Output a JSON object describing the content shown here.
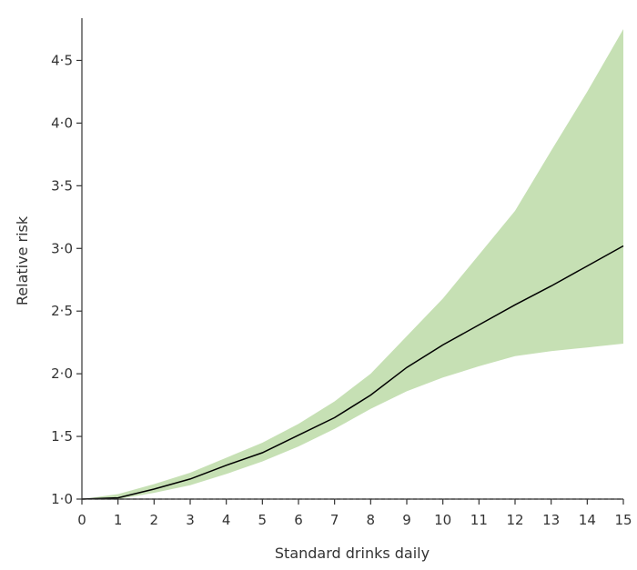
{
  "chart_data": {
    "type": "line",
    "title": "",
    "xlabel": "Standard drinks daily",
    "ylabel": "Relative risk",
    "xlim": [
      0,
      15
    ],
    "ylim": [
      1.0,
      4.75
    ],
    "x_ticks": [
      0,
      1,
      2,
      3,
      4,
      5,
      6,
      7,
      8,
      9,
      10,
      11,
      12,
      13,
      14,
      15
    ],
    "x_tick_labels": [
      "0",
      "1",
      "2",
      "3",
      "4",
      "5",
      "6",
      "7",
      "8",
      "9",
      "10",
      "11",
      "12",
      "13",
      "14",
      "15"
    ],
    "y_ticks": [
      1.0,
      1.5,
      2.0,
      2.5,
      3.0,
      3.5,
      4.0,
      4.5
    ],
    "y_tick_labels": [
      "1·0",
      "1·5",
      "2·0",
      "2·5",
      "3·0",
      "3·5",
      "4·0",
      "4·5"
    ],
    "grid": false,
    "reference_line": {
      "y": 1.0,
      "style": "dashed"
    },
    "x": [
      0,
      1,
      2,
      3,
      4,
      5,
      6,
      7,
      8,
      9,
      10,
      11,
      12,
      13,
      14,
      15
    ],
    "series": [
      {
        "values": [
          1.0,
          1.01,
          1.08,
          1.16,
          1.27,
          1.37,
          1.51,
          1.65,
          1.83,
          2.05,
          2.23,
          2.39,
          2.55,
          2.7,
          2.86,
          3.02
        ],
        "lower": [
          1.0,
          1.0,
          1.05,
          1.11,
          1.2,
          1.3,
          1.42,
          1.56,
          1.72,
          1.86,
          1.97,
          2.06,
          2.14,
          2.18,
          2.21,
          2.24
        ],
        "upper": [
          1.0,
          1.04,
          1.12,
          1.21,
          1.33,
          1.45,
          1.6,
          1.78,
          2.0,
          2.3,
          2.6,
          2.95,
          3.3,
          3.78,
          4.25,
          4.75
        ]
      }
    ],
    "colors": {
      "band": "#c6e0b4",
      "line": "#000000",
      "reference": "#555555",
      "axis": "#333333"
    }
  }
}
